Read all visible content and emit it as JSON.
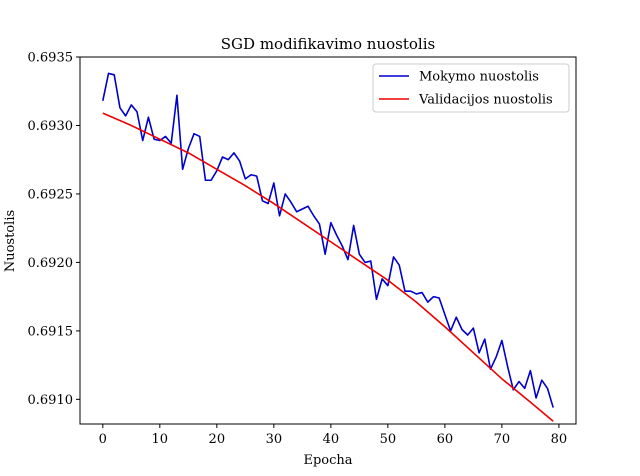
{
  "chart_data": {
    "type": "line",
    "title": "SGD modifikavimo nuostolis",
    "xlabel": "Epocha",
    "ylabel": "Nuostolis",
    "xlim": [
      -4,
      83
    ],
    "ylim": [
      0.69082,
      0.6935
    ],
    "xticks": [
      "0",
      "10",
      "20",
      "30",
      "40",
      "50",
      "60",
      "70",
      "80"
    ],
    "xtick_values": [
      0,
      10,
      20,
      30,
      40,
      50,
      60,
      70,
      80
    ],
    "yticks": [
      "0.6910",
      "0.6915",
      "0.6920",
      "0.6925",
      "0.6930",
      "0.6935"
    ],
    "ytick_values": [
      0.691,
      0.6915,
      0.692,
      0.6925,
      0.693,
      0.6935
    ],
    "grid": false,
    "legend_position": "top-right",
    "series": [
      {
        "name": "Mokymo nuostolis",
        "color": "#0000cc",
        "x": [
          0,
          1,
          2,
          3,
          4,
          5,
          6,
          7,
          8,
          9,
          10,
          11,
          12,
          13,
          14,
          15,
          16,
          17,
          18,
          19,
          20,
          21,
          22,
          23,
          24,
          25,
          26,
          27,
          28,
          29,
          30,
          31,
          32,
          33,
          34,
          35,
          36,
          37,
          38,
          39,
          40,
          41,
          42,
          43,
          44,
          45,
          46,
          47,
          48,
          49,
          50,
          51,
          52,
          53,
          54,
          55,
          56,
          57,
          58,
          59,
          60,
          61,
          62,
          63,
          64,
          65,
          66,
          67,
          68,
          69,
          70,
          71,
          72,
          73,
          74,
          75,
          76,
          77,
          78,
          79
        ],
        "values": [
          0.69318,
          0.69338,
          0.69337,
          0.69313,
          0.69307,
          0.69315,
          0.6931,
          0.69289,
          0.69306,
          0.6929,
          0.69289,
          0.69292,
          0.69287,
          0.69322,
          0.69268,
          0.69283,
          0.69294,
          0.69292,
          0.6926,
          0.6926,
          0.69267,
          0.69277,
          0.69275,
          0.6928,
          0.69274,
          0.69261,
          0.69264,
          0.69263,
          0.69245,
          0.69243,
          0.69258,
          0.69234,
          0.6925,
          0.69244,
          0.69237,
          0.69239,
          0.69241,
          0.69234,
          0.69228,
          0.69206,
          0.69229,
          0.6922,
          0.69212,
          0.69202,
          0.69227,
          0.69206,
          0.692,
          0.69201,
          0.69173,
          0.69188,
          0.69183,
          0.69204,
          0.69198,
          0.69179,
          0.69179,
          0.69177,
          0.69178,
          0.69171,
          0.69175,
          0.69174,
          0.69162,
          0.6915,
          0.6916,
          0.69151,
          0.69147,
          0.69152,
          0.69134,
          0.69144,
          0.69122,
          0.69131,
          0.69143,
          0.69124,
          0.69107,
          0.69113,
          0.69108,
          0.69121,
          0.69101,
          0.69114,
          0.69108,
          0.69094
        ]
      },
      {
        "name": "Validacijos nuostolis",
        "color": "#ee0000",
        "x": [
          0,
          5,
          10,
          15,
          20,
          25,
          30,
          35,
          40,
          45,
          50,
          55,
          60,
          65,
          70,
          75,
          79
        ],
        "values": [
          0.69309,
          0.693,
          0.6929,
          0.6928,
          0.69268,
          0.69256,
          0.69243,
          0.69229,
          0.69215,
          0.69201,
          0.69187,
          0.69171,
          0.69153,
          0.69134,
          0.69115,
          0.69098,
          0.69084
        ]
      }
    ]
  }
}
